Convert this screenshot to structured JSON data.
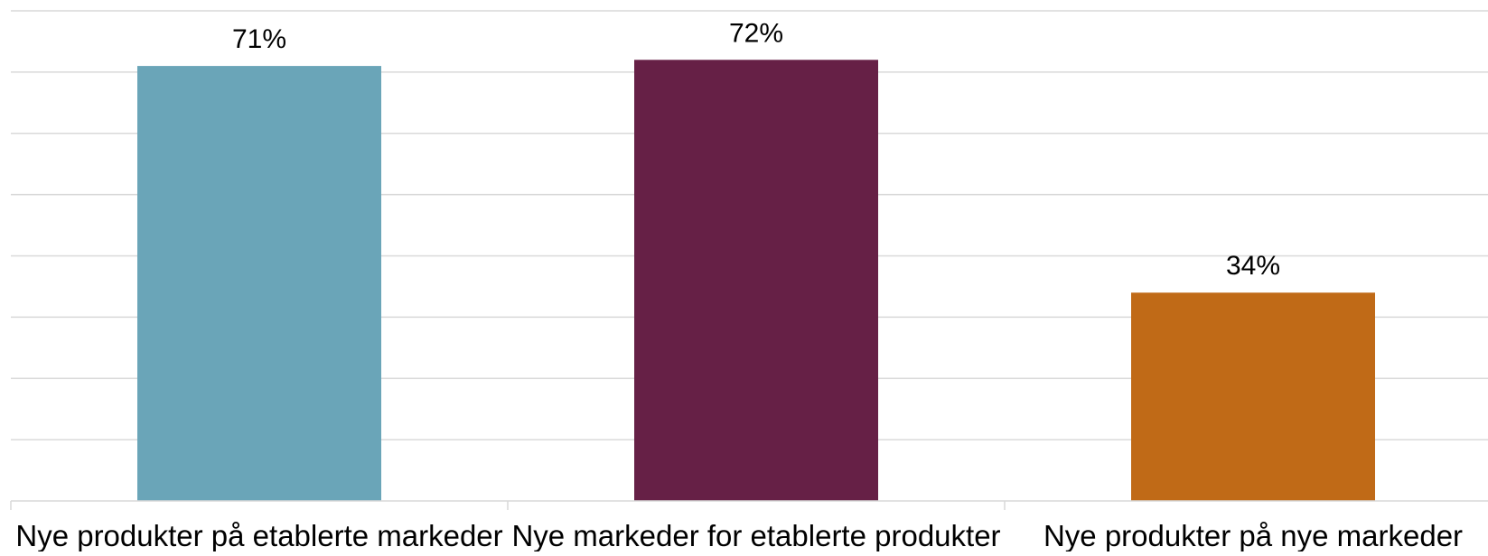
{
  "chart_data": {
    "type": "bar",
    "title": "",
    "xlabel": "",
    "ylabel": "",
    "categories": [
      "Nye produkter på etablerte markeder",
      "Nye markeder for etablerte produkter",
      "Nye produkter på nye markeder"
    ],
    "values": [
      71,
      72,
      34
    ],
    "value_labels": [
      "71%",
      "72%",
      "34%"
    ],
    "colors": [
      "#6aa5b8",
      "#662046",
      "#c06a17"
    ],
    "ylim": [
      0,
      80
    ],
    "grid": true,
    "y_tick_labels_visible": false,
    "legend": "none"
  }
}
